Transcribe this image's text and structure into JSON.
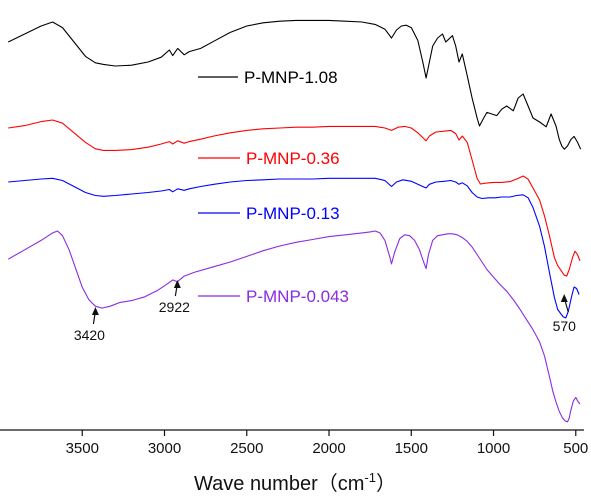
{
  "chart_data": {
    "type": "line",
    "xlabel": "Wave number（cm",
    "xlabel_superscript": "-1",
    "xlabel_suffix": "）",
    "xlim": [
      4000,
      450
    ],
    "x_reversed": true,
    "ylabel": "",
    "y_ticks_shown": false,
    "x_ticks": [
      3500,
      3000,
      2500,
      2000,
      1500,
      1000,
      500
    ],
    "grid": false,
    "legend": "inline-center",
    "series": [
      {
        "name": "P-MNP-1.08",
        "color": "#000000",
        "points": [
          [
            3950,
            0.3
          ],
          [
            3850,
            0.2
          ],
          [
            3750,
            0.1
          ],
          [
            3680,
            0.05
          ],
          [
            3620,
            0.12
          ],
          [
            3550,
            0.3
          ],
          [
            3480,
            0.48
          ],
          [
            3420,
            0.56
          ],
          [
            3370,
            0.58
          ],
          [
            3300,
            0.6
          ],
          [
            3200,
            0.59
          ],
          [
            3100,
            0.55
          ],
          [
            3020,
            0.49
          ],
          [
            2970,
            0.4
          ],
          [
            2950,
            0.47
          ],
          [
            2920,
            0.38
          ],
          [
            2880,
            0.46
          ],
          [
            2850,
            0.42
          ],
          [
            2780,
            0.38
          ],
          [
            2700,
            0.29
          ],
          [
            2600,
            0.18
          ],
          [
            2500,
            0.1
          ],
          [
            2400,
            0.06
          ],
          [
            2300,
            0.04
          ],
          [
            2200,
            0.03
          ],
          [
            2100,
            0.03
          ],
          [
            2000,
            0.03
          ],
          [
            1900,
            0.04
          ],
          [
            1800,
            0.05
          ],
          [
            1720,
            0.08
          ],
          [
            1660,
            0.14
          ],
          [
            1620,
            0.25
          ],
          [
            1590,
            0.15
          ],
          [
            1560,
            0.1
          ],
          [
            1530,
            0.09
          ],
          [
            1500,
            0.12
          ],
          [
            1460,
            0.28
          ],
          [
            1430,
            0.55
          ],
          [
            1410,
            0.75
          ],
          [
            1390,
            0.55
          ],
          [
            1370,
            0.35
          ],
          [
            1340,
            0.25
          ],
          [
            1310,
            0.2
          ],
          [
            1290,
            0.3
          ],
          [
            1270,
            0.26
          ],
          [
            1250,
            0.22
          ],
          [
            1230,
            0.35
          ],
          [
            1210,
            0.55
          ],
          [
            1190,
            0.45
          ],
          [
            1160,
            0.72
          ],
          [
            1130,
            1.0
          ],
          [
            1100,
            1.25
          ],
          [
            1085,
            1.35
          ],
          [
            1060,
            1.25
          ],
          [
            1040,
            1.18
          ],
          [
            1010,
            1.2
          ],
          [
            980,
            1.22
          ],
          [
            950,
            1.14
          ],
          [
            920,
            1.1
          ],
          [
            880,
            1.16
          ],
          [
            850,
            1.0
          ],
          [
            820,
            0.95
          ],
          [
            790,
            1.1
          ],
          [
            760,
            1.25
          ],
          [
            720,
            1.3
          ],
          [
            680,
            1.36
          ],
          [
            650,
            1.2
          ],
          [
            620,
            1.35
          ],
          [
            600,
            1.52
          ],
          [
            585,
            1.6
          ],
          [
            570,
            1.64
          ],
          [
            550,
            1.6
          ],
          [
            530,
            1.52
          ],
          [
            510,
            1.48
          ],
          [
            490,
            1.55
          ],
          [
            470,
            1.64
          ]
        ]
      },
      {
        "name": "P-MNP-0.36",
        "color": "#ff0000",
        "points": [
          [
            3950,
            0.3
          ],
          [
            3850,
            0.27
          ],
          [
            3750,
            0.22
          ],
          [
            3680,
            0.2
          ],
          [
            3620,
            0.24
          ],
          [
            3550,
            0.36
          ],
          [
            3480,
            0.48
          ],
          [
            3420,
            0.56
          ],
          [
            3370,
            0.58
          ],
          [
            3300,
            0.58
          ],
          [
            3200,
            0.57
          ],
          [
            3100,
            0.54
          ],
          [
            3020,
            0.5
          ],
          [
            2970,
            0.47
          ],
          [
            2950,
            0.5
          ],
          [
            2920,
            0.46
          ],
          [
            2880,
            0.49
          ],
          [
            2850,
            0.47
          ],
          [
            2780,
            0.44
          ],
          [
            2700,
            0.4
          ],
          [
            2600,
            0.36
          ],
          [
            2500,
            0.33
          ],
          [
            2400,
            0.31
          ],
          [
            2300,
            0.3
          ],
          [
            2200,
            0.29
          ],
          [
            2100,
            0.29
          ],
          [
            2000,
            0.28
          ],
          [
            1900,
            0.28
          ],
          [
            1800,
            0.28
          ],
          [
            1720,
            0.28
          ],
          [
            1660,
            0.3
          ],
          [
            1620,
            0.33
          ],
          [
            1580,
            0.29
          ],
          [
            1540,
            0.28
          ],
          [
            1500,
            0.3
          ],
          [
            1460,
            0.36
          ],
          [
            1430,
            0.42
          ],
          [
            1410,
            0.46
          ],
          [
            1390,
            0.4
          ],
          [
            1350,
            0.35
          ],
          [
            1300,
            0.34
          ],
          [
            1260,
            0.33
          ],
          [
            1230,
            0.37
          ],
          [
            1210,
            0.45
          ],
          [
            1190,
            0.4
          ],
          [
            1160,
            0.48
          ],
          [
            1130,
            0.7
          ],
          [
            1100,
            0.93
          ],
          [
            1080,
            1.0
          ],
          [
            1050,
            0.99
          ],
          [
            1000,
            0.98
          ],
          [
            950,
            0.98
          ],
          [
            900,
            0.97
          ],
          [
            850,
            0.93
          ],
          [
            820,
            0.9
          ],
          [
            790,
            0.94
          ],
          [
            760,
            1.05
          ],
          [
            720,
            1.2
          ],
          [
            690,
            1.4
          ],
          [
            660,
            1.65
          ],
          [
            630,
            1.92
          ],
          [
            610,
            2.02
          ],
          [
            590,
            2.08
          ],
          [
            570,
            2.14
          ],
          [
            555,
            2.15
          ],
          [
            540,
            2.07
          ],
          [
            520,
            1.92
          ],
          [
            505,
            1.84
          ],
          [
            490,
            1.88
          ],
          [
            475,
            1.96
          ]
        ]
      },
      {
        "name": "P-MNP-0.13",
        "color": "#0000ff",
        "points": [
          [
            3950,
            0.24
          ],
          [
            3850,
            0.22
          ],
          [
            3750,
            0.2
          ],
          [
            3680,
            0.19
          ],
          [
            3620,
            0.22
          ],
          [
            3550,
            0.3
          ],
          [
            3480,
            0.38
          ],
          [
            3420,
            0.42
          ],
          [
            3370,
            0.43
          ],
          [
            3300,
            0.42
          ],
          [
            3200,
            0.4
          ],
          [
            3100,
            0.38
          ],
          [
            3020,
            0.36
          ],
          [
            2970,
            0.34
          ],
          [
            2950,
            0.37
          ],
          [
            2920,
            0.33
          ],
          [
            2880,
            0.35
          ],
          [
            2850,
            0.33
          ],
          [
            2780,
            0.3
          ],
          [
            2700,
            0.27
          ],
          [
            2600,
            0.24
          ],
          [
            2500,
            0.22
          ],
          [
            2400,
            0.21
          ],
          [
            2300,
            0.2
          ],
          [
            2200,
            0.2
          ],
          [
            2100,
            0.2
          ],
          [
            2000,
            0.19
          ],
          [
            1900,
            0.19
          ],
          [
            1800,
            0.19
          ],
          [
            1720,
            0.19
          ],
          [
            1660,
            0.22
          ],
          [
            1620,
            0.3
          ],
          [
            1590,
            0.24
          ],
          [
            1550,
            0.21
          ],
          [
            1500,
            0.23
          ],
          [
            1460,
            0.27
          ],
          [
            1430,
            0.3
          ],
          [
            1410,
            0.32
          ],
          [
            1390,
            0.27
          ],
          [
            1350,
            0.24
          ],
          [
            1300,
            0.23
          ],
          [
            1260,
            0.22
          ],
          [
            1230,
            0.24
          ],
          [
            1210,
            0.27
          ],
          [
            1190,
            0.25
          ],
          [
            1160,
            0.29
          ],
          [
            1130,
            0.38
          ],
          [
            1100,
            0.44
          ],
          [
            1070,
            0.46
          ],
          [
            1030,
            0.45
          ],
          [
            990,
            0.45
          ],
          [
            950,
            0.44
          ],
          [
            900,
            0.44
          ],
          [
            860,
            0.42
          ],
          [
            820,
            0.41
          ],
          [
            790,
            0.45
          ],
          [
            760,
            0.58
          ],
          [
            720,
            0.83
          ],
          [
            690,
            1.1
          ],
          [
            660,
            1.45
          ],
          [
            630,
            1.78
          ],
          [
            610,
            1.94
          ],
          [
            590,
            2.0
          ],
          [
            575,
            2.04
          ],
          [
            560,
            2.05
          ],
          [
            545,
            1.96
          ],
          [
            525,
            1.76
          ],
          [
            510,
            1.64
          ],
          [
            495,
            1.66
          ],
          [
            480,
            1.74
          ]
        ]
      },
      {
        "name": "P-MNP-0.043",
        "color": "#8b2be2",
        "points": [
          [
            3950,
            0.3
          ],
          [
            3850,
            0.2
          ],
          [
            3750,
            0.1
          ],
          [
            3680,
            0.02
          ],
          [
            3650,
            0.0
          ],
          [
            3620,
            0.05
          ],
          [
            3580,
            0.2
          ],
          [
            3540,
            0.4
          ],
          [
            3500,
            0.6
          ],
          [
            3460,
            0.73
          ],
          [
            3420,
            0.8
          ],
          [
            3380,
            0.82
          ],
          [
            3330,
            0.8
          ],
          [
            3270,
            0.76
          ],
          [
            3200,
            0.74
          ],
          [
            3120,
            0.7
          ],
          [
            3040,
            0.63
          ],
          [
            2980,
            0.56
          ],
          [
            2950,
            0.52
          ],
          [
            2922,
            0.54
          ],
          [
            2880,
            0.48
          ],
          [
            2820,
            0.44
          ],
          [
            2700,
            0.38
          ],
          [
            2600,
            0.33
          ],
          [
            2500,
            0.27
          ],
          [
            2400,
            0.21
          ],
          [
            2300,
            0.16
          ],
          [
            2200,
            0.12
          ],
          [
            2100,
            0.09
          ],
          [
            2000,
            0.06
          ],
          [
            1900,
            0.04
          ],
          [
            1800,
            0.02
          ],
          [
            1750,
            0.01
          ],
          [
            1720,
            0.0
          ],
          [
            1690,
            0.02
          ],
          [
            1660,
            0.1
          ],
          [
            1630,
            0.28
          ],
          [
            1620,
            0.35
          ],
          [
            1600,
            0.22
          ],
          [
            1570,
            0.08
          ],
          [
            1540,
            0.04
          ],
          [
            1510,
            0.05
          ],
          [
            1480,
            0.1
          ],
          [
            1450,
            0.2
          ],
          [
            1425,
            0.33
          ],
          [
            1410,
            0.4
          ],
          [
            1395,
            0.25
          ],
          [
            1370,
            0.1
          ],
          [
            1340,
            0.05
          ],
          [
            1310,
            0.04
          ],
          [
            1280,
            0.03
          ],
          [
            1250,
            0.03
          ],
          [
            1220,
            0.04
          ],
          [
            1190,
            0.07
          ],
          [
            1160,
            0.11
          ],
          [
            1130,
            0.17
          ],
          [
            1100,
            0.25
          ],
          [
            1070,
            0.33
          ],
          [
            1040,
            0.41
          ],
          [
            1000,
            0.49
          ],
          [
            960,
            0.57
          ],
          [
            920,
            0.64
          ],
          [
            880,
            0.73
          ],
          [
            840,
            0.83
          ],
          [
            800,
            0.94
          ],
          [
            760,
            1.05
          ],
          [
            720,
            1.18
          ],
          [
            690,
            1.33
          ],
          [
            660,
            1.55
          ],
          [
            640,
            1.7
          ],
          [
            620,
            1.82
          ],
          [
            600,
            1.92
          ],
          [
            580,
            1.99
          ],
          [
            565,
            2.02
          ],
          [
            550,
            2.03
          ],
          [
            540,
            1.99
          ],
          [
            530,
            1.91
          ],
          [
            515,
            1.81
          ],
          [
            500,
            1.77
          ],
          [
            488,
            1.81
          ],
          [
            475,
            1.84
          ]
        ]
      }
    ],
    "annotations": [
      {
        "label": "3420",
        "x": 3420
      },
      {
        "label": "2922",
        "x": 2922
      },
      {
        "label": "570",
        "x": 570
      }
    ]
  }
}
